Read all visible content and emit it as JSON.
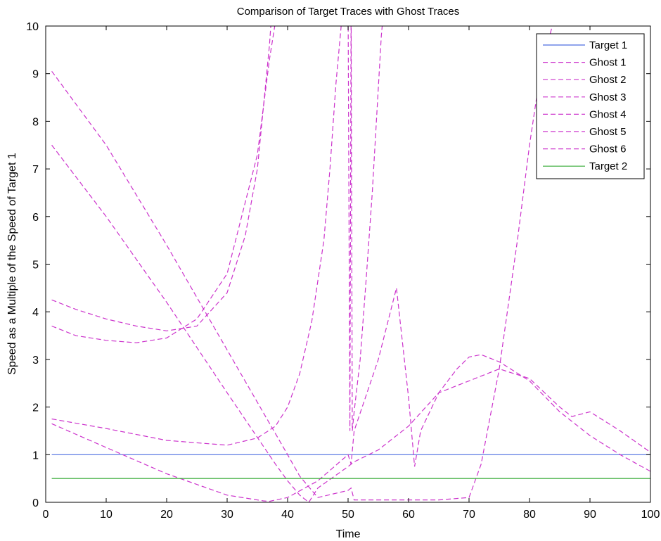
{
  "chart_data": {
    "type": "line",
    "title": "Comparison of Target Traces with Ghost Traces",
    "xlabel": "Time",
    "ylabel": "Speed as a Multiple of the Speed of Target 1",
    "xlim": [
      0,
      100
    ],
    "ylim": [
      0,
      10
    ],
    "xticks": [
      "0",
      "10",
      "20",
      "30",
      "40",
      "50",
      "60",
      "70",
      "80",
      "90",
      "100"
    ],
    "yticks": [
      "0",
      "1",
      "2",
      "3",
      "4",
      "5",
      "6",
      "7",
      "8",
      "9",
      "10"
    ],
    "grid": false,
    "legend_position": "top-right",
    "series": [
      {
        "name": "Target 1",
        "color": "#4d6ee0",
        "style": "solid",
        "x": [
          1,
          100
        ],
        "y": [
          1,
          1
        ]
      },
      {
        "name": "Ghost 1",
        "color": "#cc33cc",
        "style": "dashed",
        "x": [
          1,
          5,
          10,
          15,
          20,
          25,
          30,
          33,
          35,
          36,
          37,
          37.5
        ],
        "y": [
          4.25,
          4.05,
          3.85,
          3.7,
          3.6,
          3.7,
          4.4,
          5.6,
          7.0,
          8.3,
          9.6,
          10.5
        ]
      },
      {
        "name": "Ghost 2",
        "color": "#cc33cc",
        "style": "dashed",
        "x": [
          1,
          5,
          10,
          15,
          20,
          25,
          30,
          35,
          36,
          37,
          38,
          38.5
        ],
        "y": [
          3.7,
          3.5,
          3.4,
          3.35,
          3.45,
          3.85,
          4.8,
          7.3,
          8.3,
          9.3,
          10.1,
          10.5
        ]
      },
      {
        "name": "Ghost 3",
        "color": "#cc33cc",
        "style": "dashed",
        "x": [
          1,
          10,
          20,
          30,
          35,
          38,
          40,
          42,
          44,
          46,
          47,
          48,
          49,
          50,
          50.3,
          50.5,
          50.7,
          51,
          52,
          53,
          54,
          55.5,
          56
        ],
        "y": [
          1.75,
          1.55,
          1.3,
          1.2,
          1.35,
          1.6,
          2.0,
          2.7,
          3.8,
          5.5,
          7.0,
          8.8,
          10.2,
          10.5,
          1.5,
          10.5,
          1.5,
          1.9,
          3.0,
          4.7,
          6.5,
          9.8,
          10.5
        ]
      },
      {
        "name": "Ghost 4",
        "color": "#cc33cc",
        "style": "dashed",
        "x": [
          1,
          10,
          20,
          30,
          36,
          37,
          40,
          45,
          50,
          50.5,
          51,
          55,
          58,
          60,
          61,
          62,
          65,
          70,
          75,
          80,
          85,
          87,
          90,
          95,
          100
        ],
        "y": [
          1.65,
          1.15,
          0.6,
          0.15,
          0.03,
          0.02,
          0.1,
          0.45,
          1.0,
          0.8,
          1.5,
          3.0,
          4.5,
          2.2,
          0.75,
          1.5,
          2.3,
          2.55,
          2.8,
          2.6,
          2.0,
          1.8,
          1.9,
          1.5,
          1.05
        ]
      },
      {
        "name": "Ghost 5",
        "color": "#cc33cc",
        "style": "dashed",
        "x": [
          1,
          10,
          20,
          30,
          40,
          42,
          45,
          50,
          50.5,
          51,
          55,
          60,
          65,
          70,
          72,
          75,
          78,
          80,
          82,
          84,
          86
        ],
        "y": [
          9.05,
          7.5,
          5.4,
          3.2,
          1.0,
          0.55,
          0.1,
          0.25,
          0.3,
          0.05,
          0.05,
          0.05,
          0.05,
          0.1,
          0.8,
          2.8,
          5.5,
          7.5,
          9.2,
          10.1,
          10.5
        ]
      },
      {
        "name": "Ghost 6",
        "color": "#cc33cc",
        "style": "dashed",
        "x": [
          1,
          10,
          20,
          30,
          38,
          40,
          42,
          43.5,
          45,
          50,
          51,
          55,
          60,
          65,
          68,
          70,
          72,
          75,
          80,
          85,
          90,
          95,
          100
        ],
        "y": [
          7.5,
          6.0,
          4.2,
          2.3,
          0.8,
          0.45,
          0.15,
          0.0,
          0.3,
          0.75,
          0.85,
          1.1,
          1.6,
          2.3,
          2.8,
          3.05,
          3.1,
          2.95,
          2.55,
          1.9,
          1.4,
          1.0,
          0.65
        ]
      },
      {
        "name": "Target 2",
        "color": "#33aa33",
        "style": "solid",
        "x": [
          1,
          100
        ],
        "y": [
          0.5,
          0.5
        ]
      }
    ]
  }
}
